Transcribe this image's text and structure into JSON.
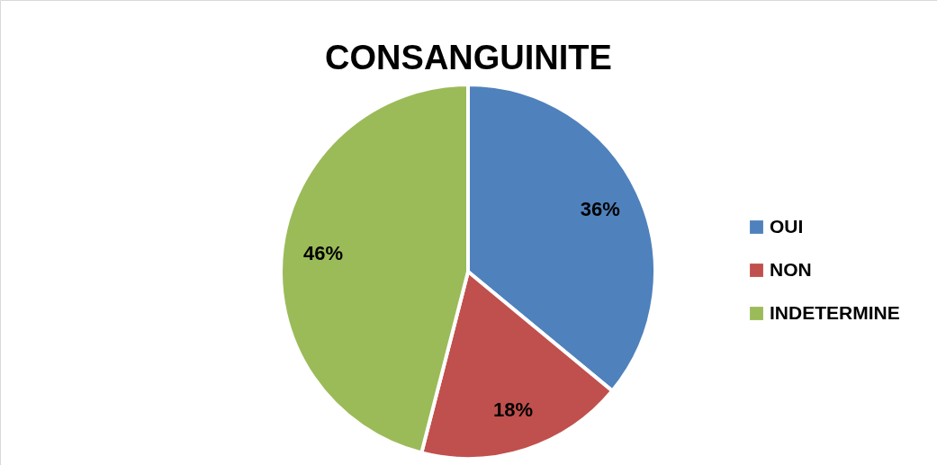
{
  "chart_data": {
    "type": "pie",
    "title": "CONSANGUINITE",
    "categories": [
      "OUI",
      "NON",
      "INDETERMINE"
    ],
    "values": [
      36,
      18,
      46
    ],
    "colors": [
      "#4f81bd",
      "#c0504d",
      "#9bbb59"
    ],
    "value_labels": [
      "36%",
      "18%",
      "46%"
    ],
    "legend": "right"
  }
}
